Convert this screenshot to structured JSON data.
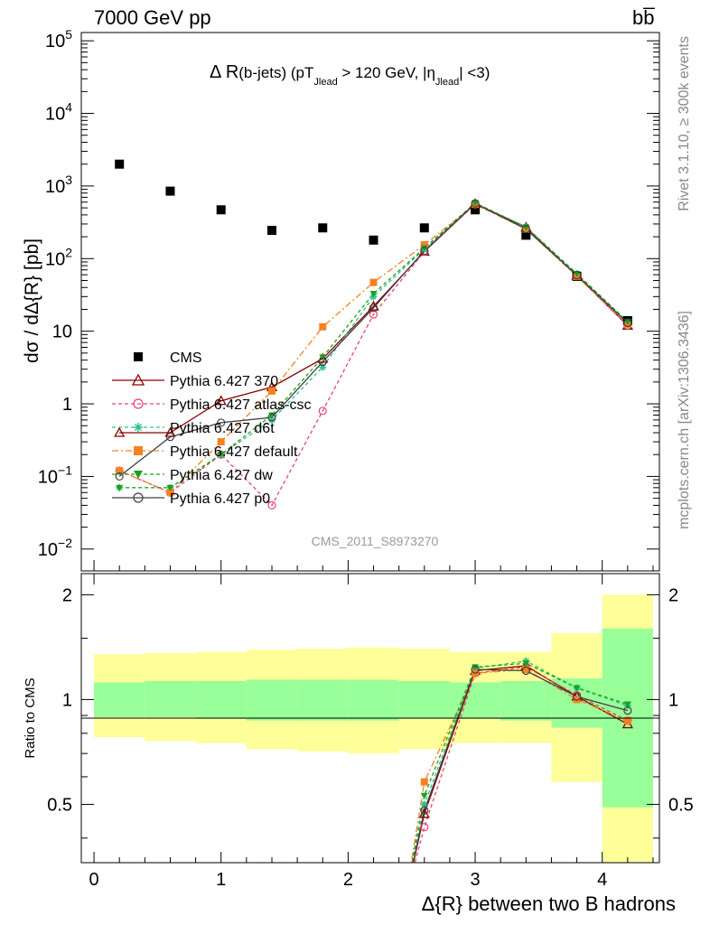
{
  "header": {
    "left": "7000 GeV pp",
    "right": "bb̅"
  },
  "side": {
    "rivet": "Rivet 3.1.10, ≥ 300k events",
    "mcplots": "mcplots.cern.ch [arXiv:1306.3436]"
  },
  "chart_data": {
    "type": "scatter",
    "title": "Δ R(b-jets) (pT_Jlead > 120 GeV, |η_Jlead| <3)",
    "title_parts": {
      "main": "Δ R",
      "sub1": "(b-jets) (pT",
      "sub1_idx": "Jlead",
      "mid": " >  120 GeV, |η",
      "sub2_idx": "Jlead",
      "end": "| <3)"
    },
    "analysis_id": "CMS_2011_S8973270",
    "xlabel": "Δ{R} between two B hadrons",
    "ylabel": "dσ / dΔ{R} [pb]",
    "ratio_ylabel": "Ratio to CMS",
    "xlim": [
      -0.1,
      4.45
    ],
    "ylim": [
      0.005,
      130000
    ],
    "yscale": "log",
    "ratio_ylim": [
      0.34,
      2.3
    ],
    "x_ticks": [
      "0",
      "1",
      "2",
      "3",
      "4"
    ],
    "y_ticks": [
      "10^-2",
      "10^-1",
      "1",
      "10",
      "10^2",
      "10^3",
      "10^4",
      "10^5"
    ],
    "ratio_ticks": [
      "0.5",
      "1",
      "2"
    ],
    "legend_position": "left-middle",
    "x": [
      0.2,
      0.6,
      1.0,
      1.4,
      1.8,
      2.2,
      2.6,
      3.0,
      3.4,
      3.8,
      4.2
    ],
    "bin_edges": [
      0.0,
      0.4,
      0.8,
      1.2,
      1.6,
      2.0,
      2.4,
      2.8,
      3.2,
      3.6,
      4.0,
      4.4
    ],
    "cms_values": [
      2000,
      850,
      470,
      245,
      265,
      180,
      265,
      470,
      210,
      57,
      14
    ],
    "band_inner": [
      [
        0.89,
        1.12
      ],
      [
        0.89,
        1.13
      ],
      [
        0.88,
        1.13
      ],
      [
        0.87,
        1.14
      ],
      [
        0.87,
        1.14
      ],
      [
        0.87,
        1.14
      ],
      [
        0.88,
        1.13
      ],
      [
        0.88,
        1.12
      ],
      [
        0.87,
        1.13
      ],
      [
        0.83,
        1.15
      ],
      [
        0.49,
        1.6
      ]
    ],
    "band_outer": [
      [
        0.78,
        1.35
      ],
      [
        0.76,
        1.36
      ],
      [
        0.75,
        1.37
      ],
      [
        0.72,
        1.39
      ],
      [
        0.71,
        1.4
      ],
      [
        0.7,
        1.41
      ],
      [
        0.72,
        1.4
      ],
      [
        0.75,
        1.37
      ],
      [
        0.75,
        1.37
      ],
      [
        0.58,
        1.55
      ],
      [
        0.34,
        2.0
      ]
    ],
    "series": [
      {
        "name": "CMS",
        "color": "#000000",
        "marker": "square-filled",
        "values": [
          2000,
          850,
          470,
          245,
          265,
          180,
          265,
          470,
          210,
          57,
          14
        ]
      },
      {
        "name": "Pythia 6.427 370",
        "color": "#8b0000",
        "marker": "triangle-open",
        "dash": "solid",
        "values": [
          0.4,
          0.4,
          1.1,
          1.7,
          4.2,
          22,
          125,
          570,
          270,
          58,
          12
        ],
        "ratio": [
          null,
          null,
          null,
          null,
          null,
          null,
          0.47,
          1.21,
          1.25,
          1.02,
          0.85
        ]
      },
      {
        "name": "Pythia 6.427 atlas-csc",
        "color": "#e8436e",
        "marker": "circle-open",
        "dash": "4,3",
        "values": [
          0.12,
          0.06,
          0.2,
          0.04,
          0.8,
          17,
          125,
          560,
          260,
          59,
          12
        ],
        "ratio": [
          null,
          null,
          null,
          null,
          null,
          null,
          0.43,
          1.19,
          1.24,
          1.03,
          0.87
        ]
      },
      {
        "name": "Pythia 6.427 d6t",
        "color": "#2ec08e",
        "marker": "star",
        "dash": "4,3",
        "values": [
          0.07,
          0.07,
          0.2,
          0.6,
          3.2,
          30,
          135,
          580,
          275,
          62,
          13.5
        ],
        "ratio": [
          null,
          null,
          null,
          null,
          null,
          null,
          0.5,
          1.23,
          1.29,
          1.08,
          0.96
        ]
      },
      {
        "name": "Pythia 6.427 default",
        "color": "#f58220",
        "marker": "square-filled",
        "dash": "7,3,2,3",
        "values": [
          0.12,
          0.06,
          0.3,
          1.5,
          11.5,
          47,
          155,
          560,
          255,
          57,
          12.5
        ],
        "ratio": [
          null,
          null,
          null,
          null,
          null,
          null,
          0.58,
          1.19,
          1.22,
          1.0,
          0.87
        ]
      },
      {
        "name": "Pythia 6.427 dw",
        "color": "#1aa31a",
        "marker": "triangle-down-filled",
        "dash": "4,3",
        "values": [
          0.07,
          0.07,
          0.2,
          0.7,
          4.4,
          33,
          140,
          585,
          270,
          62,
          13.5
        ],
        "ratio": [
          null,
          null,
          null,
          null,
          null,
          null,
          0.53,
          1.24,
          1.27,
          1.08,
          0.97
        ]
      },
      {
        "name": "Pythia 6.427 p0",
        "color": "#404040",
        "marker": "circle-open",
        "dash": "solid",
        "values": [
          0.1,
          0.35,
          0.55,
          0.65,
          3.8,
          21,
          128,
          575,
          255,
          59,
          13
        ],
        "ratio": [
          null,
          null,
          null,
          null,
          null,
          null,
          0.48,
          1.22,
          1.21,
          1.02,
          0.93
        ]
      }
    ]
  }
}
